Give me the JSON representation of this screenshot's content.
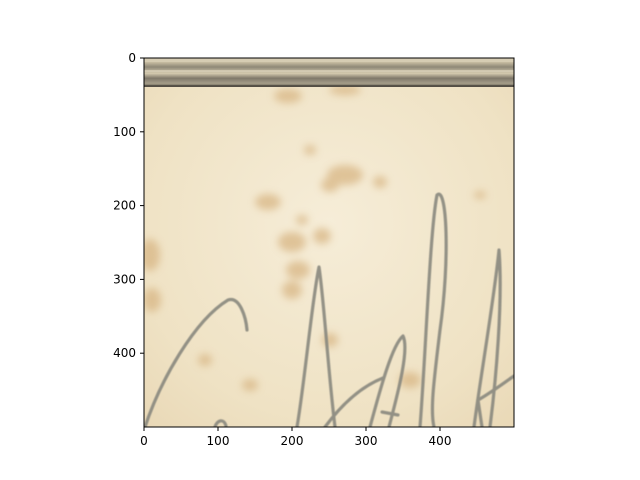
{
  "image_display": {
    "content": "aged paper with a dark horizontal strip at the top, scattered brown foxing stains, and grey handwritten pen script strokes",
    "xlim": [
      0,
      500
    ],
    "ylim": [
      500,
      0
    ],
    "y_axis_inverted": true,
    "xticks": [
      {
        "value": 0,
        "label": "0"
      },
      {
        "value": 100,
        "label": "100"
      },
      {
        "value": 200,
        "label": "200"
      },
      {
        "value": 300,
        "label": "300"
      },
      {
        "value": 400,
        "label": "400"
      }
    ],
    "yticks": [
      {
        "value": 0,
        "label": "0"
      },
      {
        "value": 100,
        "label": "100"
      },
      {
        "value": 200,
        "label": "200"
      },
      {
        "value": 300,
        "label": "300"
      },
      {
        "value": 400,
        "label": "400"
      }
    ],
    "colors": {
      "paper": "#f0e3c6",
      "paper_light": "#f6edd7",
      "stain": "#d9b889",
      "ink": "#8b8a80",
      "strip": "#8e8878"
    }
  }
}
